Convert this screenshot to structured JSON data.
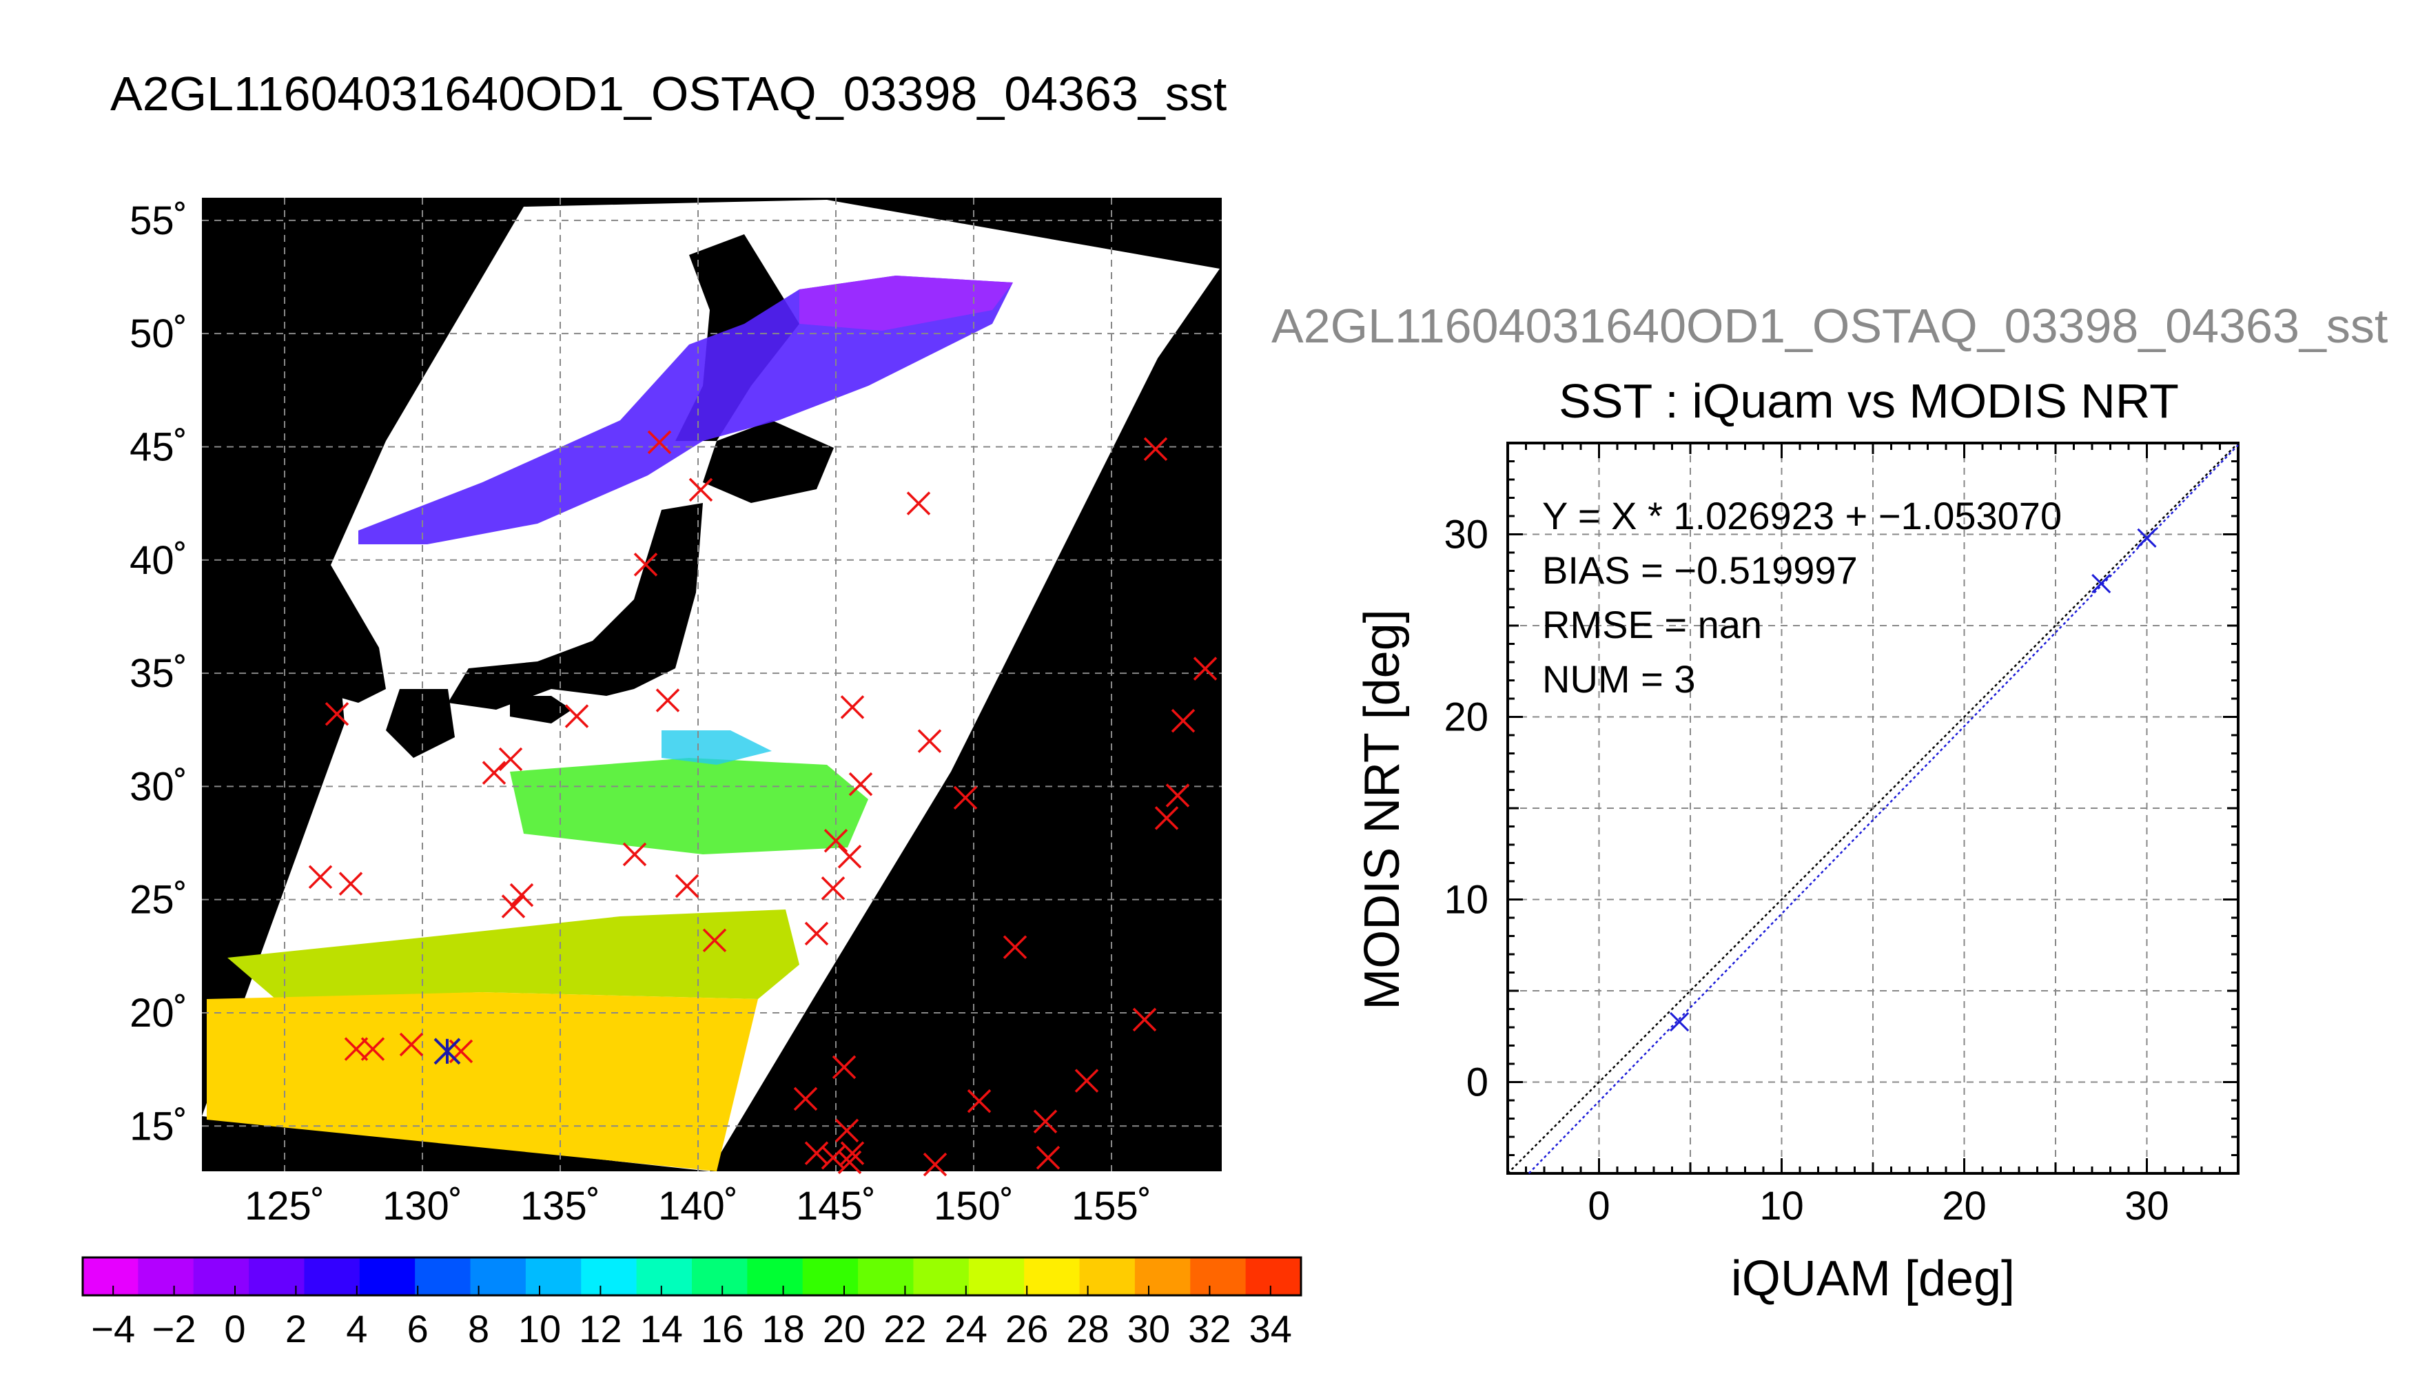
{
  "header": {
    "map_title": "A2GL11604031640OD1_OSTAQ_03398_04363_sst",
    "scatter_title_gray": "A2GL11604031640OD1_OSTAQ_03398_04363_sst"
  },
  "chart_data": [
    {
      "type": "map",
      "xlabel": "",
      "ylabel": "",
      "lon_ticks": [
        "125˚",
        "130˚",
        "135˚",
        "140˚",
        "145˚",
        "150˚",
        "155˚"
      ],
      "lat_ticks": [
        "55˚",
        "50˚",
        "45˚",
        "40˚",
        "35˚",
        "30˚",
        "25˚",
        "20˚",
        "15˚"
      ],
      "lon_range": [
        122,
        159
      ],
      "lat_range": [
        13,
        56
      ],
      "colorbar": {
        "ticks": [
          "−4",
          "−2",
          "0",
          "2",
          "4",
          "6",
          "8",
          "10",
          "12",
          "14",
          "16",
          "18",
          "20",
          "22",
          "24",
          "26",
          "28",
          "30",
          "32",
          "34"
        ],
        "range": [
          -5,
          35
        ],
        "colors": [
          "#e600ff",
          "#b300ff",
          "#8c00ff",
          "#6600ff",
          "#3300ff",
          "#0000ff",
          "#0055ff",
          "#0088ff",
          "#00bbff",
          "#00eeff",
          "#00ffbb",
          "#00ff77",
          "#00ff33",
          "#33ff00",
          "#66ff00",
          "#99ff00",
          "#ccff00",
          "#ffee00",
          "#ffcc00",
          "#ff9900",
          "#ff6600",
          "#ff3300"
        ]
      },
      "points_matchups_lonlat": [
        [
          127.6,
          18.4
        ],
        [
          128.2,
          18.4
        ],
        [
          129.6,
          18.6
        ],
        [
          131.4,
          18.3
        ],
        [
          126.9,
          33.2
        ],
        [
          126.3,
          26.0
        ],
        [
          127.4,
          25.7
        ],
        [
          132.6,
          30.6
        ],
        [
          133.2,
          31.2
        ],
        [
          133.3,
          24.7
        ],
        [
          133.6,
          25.2
        ],
        [
          135.6,
          33.1
        ],
        [
          137.7,
          27.0
        ],
        [
          138.1,
          39.8
        ],
        [
          138.6,
          45.2
        ],
        [
          138.9,
          33.8
        ],
        [
          139.6,
          25.6
        ],
        [
          140.1,
          43.1
        ],
        [
          140.6,
          23.2
        ],
        [
          144.3,
          23.5
        ],
        [
          144.9,
          25.5
        ],
        [
          145.0,
          27.6
        ],
        [
          145.5,
          26.9
        ],
        [
          145.6,
          33.5
        ],
        [
          145.9,
          30.1
        ],
        [
          148.0,
          42.5
        ],
        [
          148.4,
          32.0
        ],
        [
          149.7,
          29.5
        ],
        [
          151.5,
          22.9
        ],
        [
          156.2,
          19.7
        ],
        [
          156.6,
          44.9
        ],
        [
          157.0,
          28.6
        ],
        [
          157.4,
          29.6
        ],
        [
          157.6,
          32.9
        ],
        [
          158.4,
          35.2
        ],
        [
          143.9,
          16.2
        ],
        [
          144.3,
          13.8
        ],
        [
          144.9,
          13.6
        ],
        [
          145.3,
          17.6
        ],
        [
          145.4,
          14.8
        ],
        [
          145.5,
          13.4
        ],
        [
          145.6,
          13.8
        ],
        [
          148.6,
          13.3
        ],
        [
          150.2,
          16.1
        ],
        [
          152.6,
          15.2
        ],
        [
          152.7,
          13.6
        ],
        [
          154.1,
          17.0
        ]
      ],
      "points_highlight_lonlat": [
        [
          130.9,
          18.3
        ]
      ]
    },
    {
      "type": "scatter",
      "title": "SST : iQuam vs MODIS NRT",
      "xlabel": "iQUAM [deg]",
      "ylabel": "MODIS NRT [deg]",
      "xlim": [
        -5,
        35
      ],
      "ylim": [
        -5,
        35
      ],
      "x_ticks": [
        "0",
        "10",
        "20",
        "30"
      ],
      "y_ticks": [
        "0",
        "10",
        "20",
        "30"
      ],
      "grid": true,
      "stats": [
        "Y = X * 1.026923 + −1.053070",
        "BIAS = −0.519997",
        "RMSE = nan",
        "NUM = 3"
      ],
      "fit": {
        "slope": 1.026923,
        "intercept": -1.05307
      },
      "series": [
        {
          "x": [
            4.4,
            27.5,
            30.0
          ],
          "y": [
            3.3,
            27.3,
            29.8
          ]
        }
      ]
    }
  ]
}
